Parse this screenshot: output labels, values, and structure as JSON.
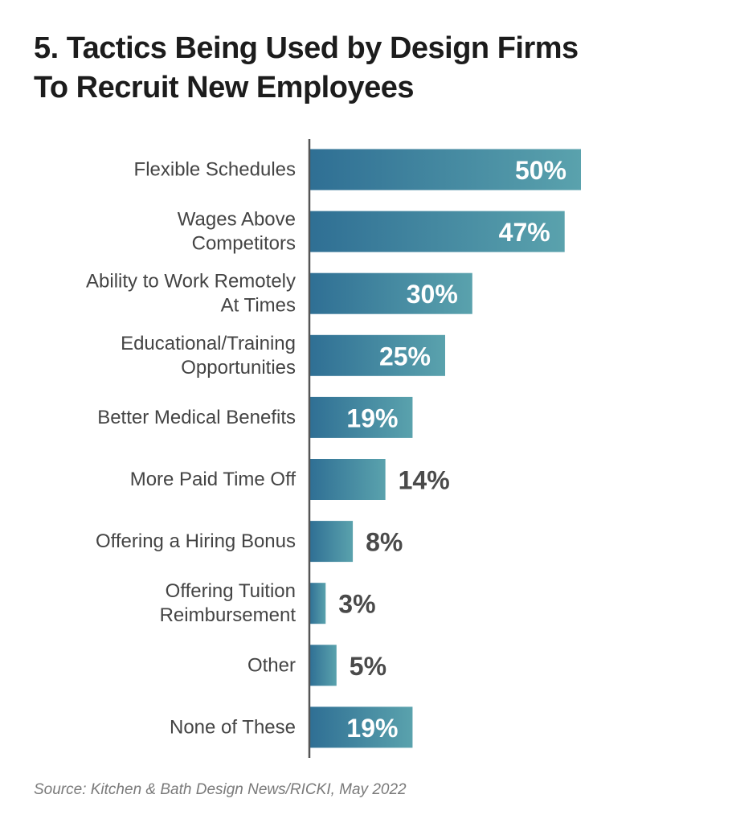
{
  "title_lines": [
    "5. Tactics Being Used by Design Firms",
    "To Recruit New Employees"
  ],
  "source": "Source: Kitchen & Bath Design News/RICKI, May 2022",
  "colors": {
    "bar_dark": "#2f6f94",
    "bar_light": "#5aa2ad",
    "label_inside": "#ffffff",
    "label_outside": "#4a4a4a",
    "category_text": "#444444",
    "axis": "#555555"
  },
  "chart_data": {
    "type": "bar",
    "orientation": "horizontal",
    "categories": [
      [
        "Flexible Schedules"
      ],
      [
        "Wages Above",
        "Competitors"
      ],
      [
        "Ability to Work Remotely",
        "At Times"
      ],
      [
        "Educational/Training",
        "Opportunities"
      ],
      [
        "Better Medical Benefits"
      ],
      [
        "More Paid Time Off"
      ],
      [
        "Offering a Hiring Bonus"
      ],
      [
        "Offering Tuition",
        "Reimbursement"
      ],
      [
        "Other"
      ],
      [
        "None of These"
      ]
    ],
    "values": [
      50,
      47,
      30,
      25,
      19,
      14,
      8,
      3,
      5,
      19
    ],
    "value_labels": [
      "50%",
      "47%",
      "30%",
      "25%",
      "19%",
      "14%",
      "8%",
      "3%",
      "5%",
      "19%"
    ],
    "label_inside": [
      true,
      true,
      true,
      true,
      true,
      false,
      false,
      false,
      false,
      true
    ],
    "unit": "%",
    "grid": false
  }
}
